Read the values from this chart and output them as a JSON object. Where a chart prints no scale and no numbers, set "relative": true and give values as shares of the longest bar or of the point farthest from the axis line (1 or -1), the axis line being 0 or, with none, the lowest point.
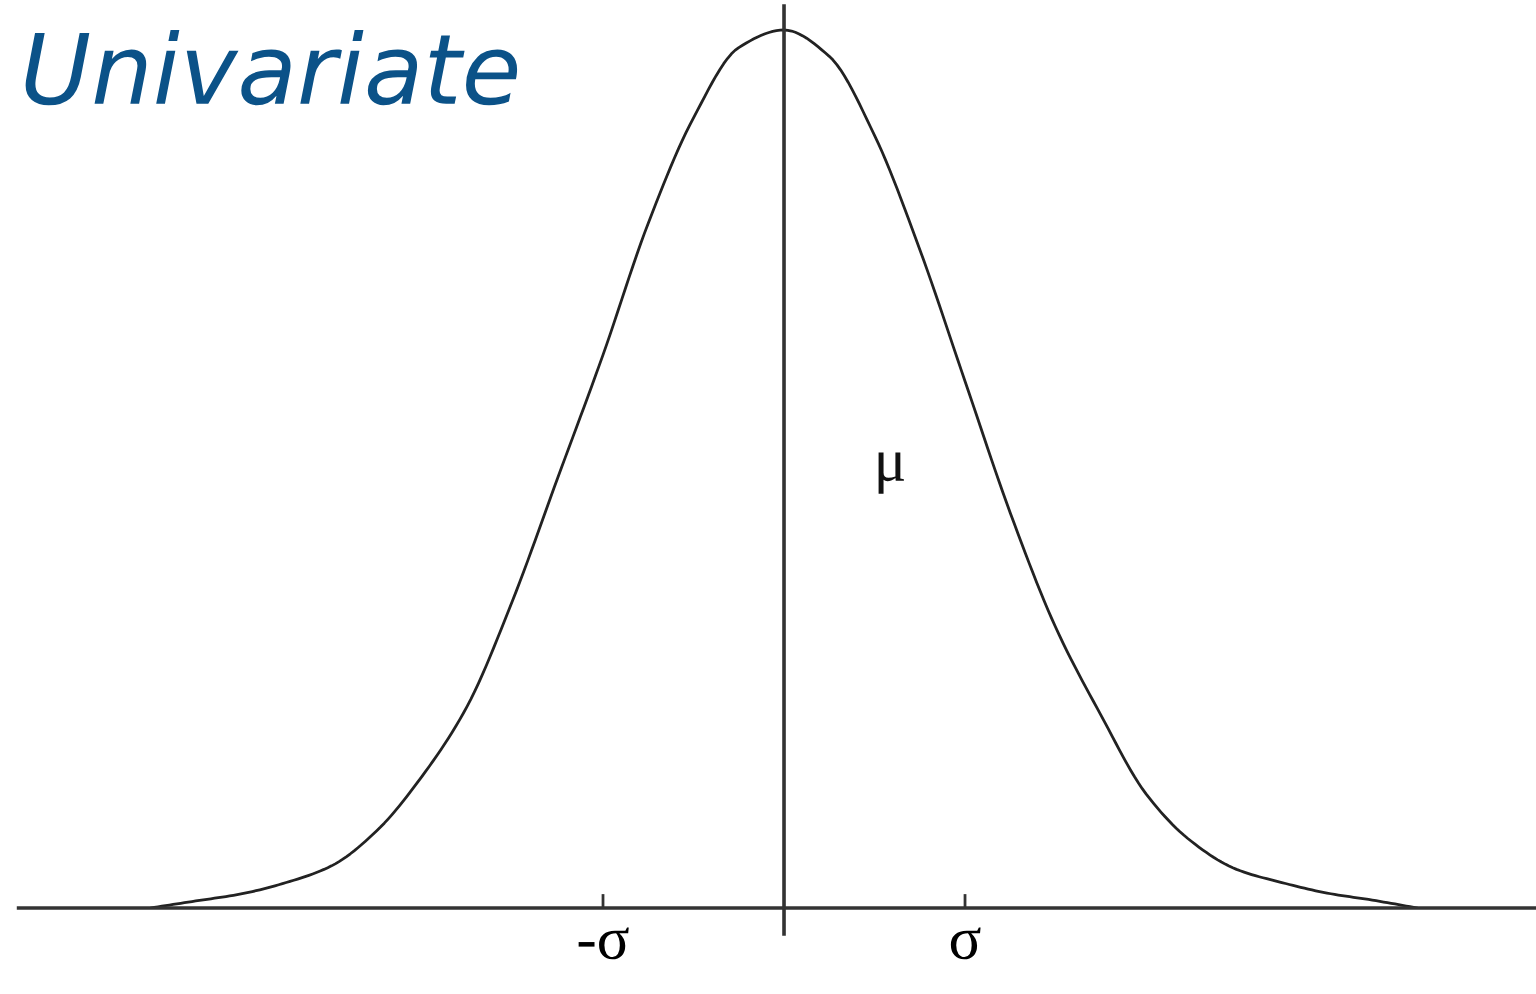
{
  "chart_data": {
    "type": "line",
    "title": "Univariate",
    "ylabel": "μ",
    "relative": true,
    "categories": [
      null,
      null,
      null,
      null,
      null,
      null,
      null,
      null,
      null,
      null,
      "-σ",
      null,
      null,
      null,
      null,
      null,
      null,
      null,
      "σ",
      null,
      null,
      null,
      null,
      null,
      null,
      null,
      null,
      null,
      null
    ],
    "series": [
      {
        "color": "#222222",
        "values": [
          0.0,
          0.008,
          0.016,
          0.029,
          0.048,
          0.088,
          0.15,
          0.23,
          0.35,
          0.49,
          0.63,
          0.78,
          0.9,
          0.98,
          1.0,
          0.97,
          0.88,
          0.75,
          0.6,
          0.45,
          0.32,
          0.22,
          0.13,
          0.076,
          0.044,
          0.029,
          0.017,
          0.009,
          0.0
        ]
      }
    ],
    "tick_labels": "x"
  }
}
